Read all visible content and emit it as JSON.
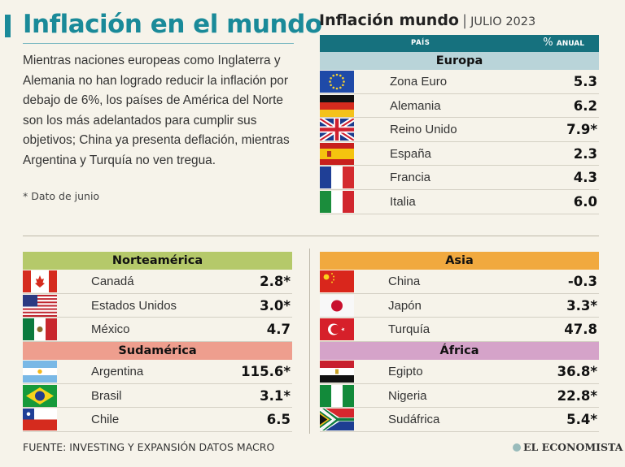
{
  "title": "Inflación en el mundo",
  "intro": "Mientras naciones europeas como Inglaterra y Alemania no han logrado reducir la inflación por debajo de 6%, los países de América del Norte son los más adelantados para cumplir sus objetivos; China ya presenta deflación, mientras Argentina y Turquía no ven tregua.",
  "footnote": "* Dato de junio",
  "panel": {
    "title": "Inflación mundo",
    "separator": "|",
    "date": "JULIO 2023",
    "col_country": "PAÍS",
    "col_value_pct": "%",
    "col_value_label": "ANUAL"
  },
  "regions": {
    "europa": {
      "name": "Europa",
      "color": "#b9d4d9",
      "rows": [
        {
          "name": "Zona Euro",
          "value": "5.3",
          "flag": "eu"
        },
        {
          "name": "Alemania",
          "value": "6.2",
          "flag": "de"
        },
        {
          "name": "Reino Unido",
          "value": "7.9*",
          "flag": "gb"
        },
        {
          "name": "España",
          "value": "2.3",
          "flag": "es"
        },
        {
          "name": "Francia",
          "value": "4.3",
          "flag": "fr"
        },
        {
          "name": "Italia",
          "value": "6.0",
          "flag": "it"
        }
      ]
    },
    "norteamerica": {
      "name": "Norteamérica",
      "color": "#b5c96a",
      "rows": [
        {
          "name": "Canadá",
          "value": "2.8*",
          "flag": "ca"
        },
        {
          "name": "Estados Unidos",
          "value": "3.0*",
          "flag": "us"
        },
        {
          "name": "México",
          "value": "4.7",
          "flag": "mx"
        }
      ]
    },
    "sudamerica": {
      "name": "Sudamérica",
      "color": "#ee9e8e",
      "rows": [
        {
          "name": "Argentina",
          "value": "115.6*",
          "flag": "ar"
        },
        {
          "name": "Brasil",
          "value": "3.1*",
          "flag": "br"
        },
        {
          "name": "Chile",
          "value": "6.5",
          "flag": "cl"
        }
      ]
    },
    "asia": {
      "name": "Asia",
      "color": "#f1a93f",
      "rows": [
        {
          "name": "China",
          "value": "-0.3",
          "flag": "cn"
        },
        {
          "name": "Japón",
          "value": "3.3*",
          "flag": "jp"
        },
        {
          "name": "Turquía",
          "value": "47.8",
          "flag": "tr"
        }
      ]
    },
    "africa": {
      "name": "África",
      "color": "#d5a3c9",
      "rows": [
        {
          "name": "Egipto",
          "value": "36.8*",
          "flag": "eg"
        },
        {
          "name": "Nigeria",
          "value": "22.8*",
          "flag": "ng"
        },
        {
          "name": "Sudáfrica",
          "value": "5.4*",
          "flag": "za"
        }
      ]
    }
  },
  "source": "FUENTE: INVESTING Y EXPANSIÓN DATOS MACRO",
  "logo": "EL ECONOMISTA"
}
